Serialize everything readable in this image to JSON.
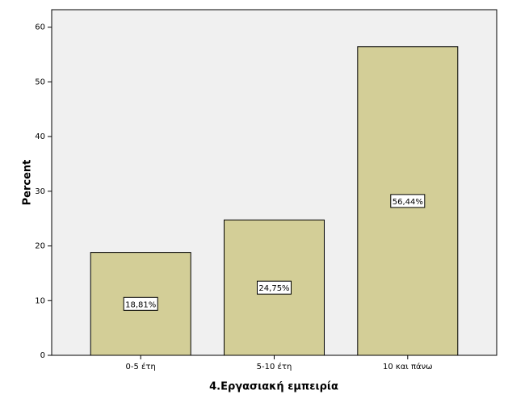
{
  "chart_data": {
    "type": "bar",
    "x_label": "4.Εργασιακή εμπειρία",
    "y_label": "Percent",
    "categories": [
      "0-5 έτη",
      "5-10 έτη",
      "10 και πάνω"
    ],
    "values": [
      18.81,
      24.75,
      56.44
    ],
    "value_labels": [
      "18,81%",
      "24,75%",
      "56,44%"
    ],
    "color": "#d3ce97",
    "ylim": [
      0,
      63.2
    ],
    "yticks": [
      0,
      10,
      20,
      30,
      40,
      50,
      60
    ]
  }
}
